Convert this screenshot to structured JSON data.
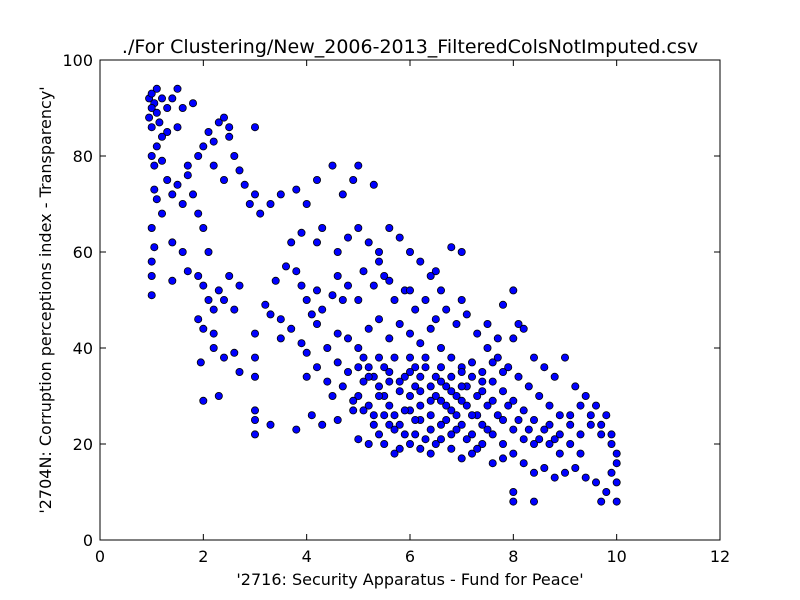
{
  "chart_data": {
    "type": "scatter",
    "title": "./For Clustering/New_2006-2013_FilteredColsNotImputed.csv",
    "xlabel": "'2716: Security Apparatus - Fund for Peace'",
    "ylabel": "'2704N: Corruption perceptions index - Transparency'",
    "xlim": [
      0,
      12
    ],
    "ylim": [
      0,
      100
    ],
    "x_ticks": [
      "0",
      "2",
      "4",
      "6",
      "8",
      "10",
      "12"
    ],
    "y_ticks": [
      "0",
      "20",
      "40",
      "60",
      "80",
      "100"
    ],
    "grid": false,
    "legend": "none",
    "marker_color": "#0000ff",
    "marker_edge_color": "#000000",
    "points": [
      [
        0.95,
        92
      ],
      [
        1.0,
        93
      ],
      [
        1.05,
        91
      ],
      [
        1.1,
        94
      ],
      [
        1.0,
        90
      ],
      [
        0.95,
        88
      ],
      [
        1.1,
        89
      ],
      [
        1.2,
        92
      ],
      [
        1.0,
        86
      ],
      [
        1.15,
        87
      ],
      [
        1.3,
        90
      ],
      [
        1.4,
        92
      ],
      [
        1.5,
        94
      ],
      [
        1.6,
        90
      ],
      [
        1.3,
        85
      ],
      [
        1.5,
        86
      ],
      [
        1.2,
        84
      ],
      [
        1.8,
        91
      ],
      [
        1.0,
        80
      ],
      [
        1.05,
        78
      ],
      [
        1.1,
        82
      ],
      [
        1.2,
        79
      ],
      [
        1.05,
        73
      ],
      [
        1.1,
        71
      ],
      [
        1.2,
        68
      ],
      [
        1.0,
        65
      ],
      [
        1.05,
        61
      ],
      [
        1.0,
        58
      ],
      [
        1.0,
        55
      ],
      [
        1.0,
        51
      ],
      [
        1.3,
        75
      ],
      [
        1.4,
        72
      ],
      [
        1.5,
        74
      ],
      [
        1.6,
        70
      ],
      [
        1.7,
        76
      ],
      [
        1.8,
        72
      ],
      [
        1.9,
        68
      ],
      [
        1.7,
        78
      ],
      [
        1.9,
        80
      ],
      [
        2.0,
        82
      ],
      [
        2.1,
        85
      ],
      [
        2.2,
        83
      ],
      [
        2.3,
        87
      ],
      [
        2.4,
        88
      ],
      [
        2.5,
        86
      ],
      [
        2.5,
        84
      ],
      [
        2.2,
        78
      ],
      [
        2.4,
        75
      ],
      [
        2.6,
        80
      ],
      [
        2.7,
        77
      ],
      [
        3.0,
        86
      ],
      [
        2.8,
        74
      ],
      [
        3.0,
        72
      ],
      [
        2.9,
        70
      ],
      [
        3.1,
        68
      ],
      [
        3.3,
        70
      ],
      [
        3.5,
        72
      ],
      [
        3.8,
        73
      ],
      [
        4.0,
        70
      ],
      [
        4.2,
        75
      ],
      [
        4.5,
        78
      ],
      [
        4.7,
        72
      ],
      [
        4.9,
        75
      ],
      [
        5.0,
        78
      ],
      [
        5.3,
        74
      ],
      [
        1.6,
        60
      ],
      [
        1.7,
        56
      ],
      [
        1.4,
        62
      ],
      [
        1.4,
        54
      ],
      [
        2.0,
        65
      ],
      [
        2.1,
        60
      ],
      [
        1.9,
        55
      ],
      [
        2.0,
        53
      ],
      [
        2.1,
        50
      ],
      [
        2.2,
        48
      ],
      [
        1.9,
        46
      ],
      [
        2.0,
        44
      ],
      [
        2.2,
        43
      ],
      [
        2.3,
        52
      ],
      [
        2.4,
        50
      ],
      [
        2.5,
        55
      ],
      [
        2.6,
        48
      ],
      [
        2.7,
        53
      ],
      [
        2.2,
        40
      ],
      [
        2.4,
        38
      ],
      [
        2.6,
        39
      ],
      [
        2.7,
        35
      ],
      [
        2.3,
        30
      ],
      [
        2.0,
        29
      ],
      [
        1.95,
        37
      ],
      [
        3.0,
        43
      ],
      [
        3.0,
        38
      ],
      [
        3.0,
        34
      ],
      [
        3.0,
        27
      ],
      [
        3.0,
        25
      ],
      [
        3.0,
        22
      ],
      [
        3.3,
        24
      ],
      [
        3.2,
        49
      ],
      [
        3.3,
        47
      ],
      [
        3.5,
        46
      ],
      [
        3.4,
        54
      ],
      [
        3.6,
        57
      ],
      [
        3.8,
        56
      ],
      [
        3.9,
        53
      ],
      [
        4.0,
        50
      ],
      [
        4.1,
        47
      ],
      [
        4.2,
        52
      ],
      [
        4.3,
        48
      ],
      [
        4.5,
        51
      ],
      [
        4.6,
        55
      ],
      [
        4.7,
        50
      ],
      [
        4.8,
        53
      ],
      [
        5.0,
        50
      ],
      [
        3.7,
        62
      ],
      [
        3.9,
        64
      ],
      [
        4.2,
        62
      ],
      [
        4.3,
        65
      ],
      [
        4.6,
        60
      ],
      [
        4.8,
        63
      ],
      [
        5.0,
        65
      ],
      [
        5.2,
        62
      ],
      [
        5.4,
        60
      ],
      [
        5.6,
        65
      ],
      [
        5.8,
        63
      ],
      [
        6.0,
        60
      ],
      [
        6.2,
        58
      ],
      [
        6.5,
        56
      ],
      [
        6.8,
        61
      ],
      [
        7.0,
        60
      ],
      [
        3.5,
        42
      ],
      [
        3.7,
        44
      ],
      [
        3.9,
        41
      ],
      [
        4.0,
        39
      ],
      [
        4.2,
        45
      ],
      [
        4.4,
        40
      ],
      [
        4.6,
        43
      ],
      [
        4.8,
        42
      ],
      [
        4.0,
        34
      ],
      [
        4.2,
        36
      ],
      [
        4.4,
        33
      ],
      [
        4.6,
        37
      ],
      [
        3.8,
        23
      ],
      [
        4.1,
        26
      ],
      [
        4.3,
        24
      ],
      [
        4.6,
        25
      ],
      [
        4.9,
        27
      ],
      [
        5.0,
        21
      ],
      [
        5.2,
        20
      ],
      [
        5.4,
        22
      ],
      [
        5.6,
        24
      ],
      [
        5.8,
        19
      ],
      [
        6.0,
        20
      ],
      [
        6.2,
        19
      ],
      [
        6.4,
        18
      ],
      [
        6.6,
        21
      ],
      [
        6.8,
        19
      ],
      [
        7.0,
        17
      ],
      [
        7.2,
        18
      ],
      [
        7.4,
        20
      ],
      [
        7.6,
        16
      ],
      [
        7.8,
        17
      ],
      [
        8.0,
        18
      ],
      [
        8.2,
        16
      ],
      [
        8.4,
        14
      ],
      [
        8.6,
        15
      ],
      [
        8.8,
        13
      ],
      [
        9.0,
        14
      ],
      [
        9.2,
        15
      ],
      [
        9.4,
        13
      ],
      [
        9.6,
        12
      ],
      [
        9.8,
        10
      ],
      [
        10.0,
        8
      ],
      [
        9.9,
        14
      ],
      [
        10.0,
        16
      ],
      [
        10.0,
        12
      ],
      [
        9.7,
        8
      ],
      [
        8.0,
        8
      ],
      [
        8.4,
        8
      ],
      [
        8.0,
        10
      ],
      [
        10.0,
        18
      ],
      [
        5.0,
        40
      ],
      [
        5.1,
        38
      ],
      [
        5.2,
        36
      ],
      [
        5.3,
        34
      ],
      [
        5.4,
        32
      ],
      [
        5.5,
        30
      ],
      [
        5.6,
        28
      ],
      [
        5.7,
        26
      ],
      [
        5.8,
        24
      ],
      [
        5.9,
        22
      ],
      [
        5.2,
        44
      ],
      [
        5.4,
        46
      ],
      [
        5.6,
        42
      ],
      [
        5.8,
        45
      ],
      [
        6.0,
        43
      ],
      [
        6.2,
        41
      ],
      [
        6.4,
        44
      ],
      [
        6.6,
        40
      ],
      [
        6.8,
        38
      ],
      [
        7.0,
        36
      ],
      [
        5.5,
        36
      ],
      [
        5.7,
        38
      ],
      [
        5.9,
        34
      ],
      [
        6.1,
        32
      ],
      [
        6.3,
        36
      ],
      [
        6.5,
        34
      ],
      [
        6.7,
        32
      ],
      [
        6.9,
        30
      ],
      [
        7.1,
        28
      ],
      [
        7.3,
        26
      ],
      [
        6.0,
        30
      ],
      [
        6.2,
        28
      ],
      [
        6.4,
        26
      ],
      [
        6.6,
        24
      ],
      [
        6.8,
        22
      ],
      [
        7.0,
        24
      ],
      [
        7.2,
        22
      ],
      [
        7.4,
        24
      ],
      [
        7.6,
        22
      ],
      [
        7.8,
        20
      ],
      [
        6.1,
        36
      ],
      [
        6.3,
        38
      ],
      [
        6.5,
        30
      ],
      [
        6.7,
        28
      ],
      [
        6.9,
        26
      ],
      [
        7.1,
        32
      ],
      [
        7.3,
        30
      ],
      [
        7.5,
        28
      ],
      [
        7.7,
        26
      ],
      [
        7.9,
        28
      ],
      [
        7.0,
        35
      ],
      [
        7.2,
        37
      ],
      [
        7.4,
        35
      ],
      [
        7.6,
        33
      ],
      [
        7.8,
        31
      ],
      [
        8.0,
        29
      ],
      [
        8.2,
        27
      ],
      [
        8.4,
        25
      ],
      [
        8.6,
        23
      ],
      [
        8.8,
        21
      ],
      [
        7.5,
        40
      ],
      [
        7.7,
        38
      ],
      [
        7.9,
        36
      ],
      [
        8.1,
        34
      ],
      [
        8.3,
        32
      ],
      [
        8.5,
        30
      ],
      [
        8.7,
        28
      ],
      [
        8.9,
        26
      ],
      [
        9.1,
        24
      ],
      [
        9.3,
        22
      ],
      [
        8.0,
        42
      ],
      [
        8.1,
        45
      ],
      [
        7.8,
        49
      ],
      [
        8.0,
        52
      ],
      [
        8.2,
        44
      ],
      [
        8.4,
        38
      ],
      [
        8.6,
        36
      ],
      [
        8.8,
        34
      ],
      [
        9.0,
        38
      ],
      [
        9.2,
        32
      ],
      [
        9.4,
        30
      ],
      [
        9.6,
        28
      ],
      [
        9.8,
        26
      ],
      [
        9.5,
        24
      ],
      [
        9.7,
        22
      ],
      [
        9.9,
        20
      ],
      [
        9.3,
        18
      ],
      [
        9.1,
        20
      ],
      [
        8.9,
        18
      ],
      [
        8.7,
        20
      ],
      [
        5.3,
        53
      ],
      [
        5.5,
        55
      ],
      [
        5.7,
        50
      ],
      [
        5.9,
        52
      ],
      [
        6.1,
        48
      ],
      [
        6.3,
        50
      ],
      [
        6.5,
        46
      ],
      [
        6.7,
        48
      ],
      [
        6.9,
        45
      ],
      [
        7.1,
        47
      ],
      [
        7.3,
        43
      ],
      [
        7.5,
        45
      ],
      [
        7.7,
        42
      ],
      [
        5.1,
        56
      ],
      [
        5.4,
        58
      ],
      [
        5.6,
        54
      ],
      [
        6.0,
        52
      ],
      [
        6.4,
        55
      ],
      [
        6.6,
        52
      ],
      [
        7.0,
        50
      ],
      [
        5.0,
        30
      ],
      [
        5.1,
        33
      ],
      [
        5.2,
        28
      ],
      [
        5.3,
        26
      ],
      [
        5.4,
        30
      ],
      [
        5.6,
        33
      ],
      [
        5.8,
        31
      ],
      [
        6.0,
        27
      ],
      [
        6.2,
        25
      ],
      [
        6.4,
        23
      ],
      [
        6.6,
        29
      ],
      [
        6.8,
        27
      ],
      [
        7.0,
        29
      ],
      [
        7.2,
        26
      ],
      [
        7.4,
        31
      ],
      [
        7.6,
        29
      ],
      [
        7.8,
        25
      ],
      [
        8.0,
        23
      ],
      [
        8.2,
        21
      ],
      [
        8.4,
        20
      ],
      [
        6.0,
        38
      ],
      [
        6.2,
        34
      ],
      [
        6.4,
        32
      ],
      [
        6.6,
        36
      ],
      [
        6.8,
        34
      ],
      [
        7.0,
        32
      ],
      [
        7.2,
        34
      ],
      [
        7.4,
        33
      ],
      [
        7.6,
        37
      ],
      [
        7.8,
        35
      ],
      [
        5.5,
        20
      ],
      [
        5.7,
        18
      ],
      [
        6.1,
        22
      ],
      [
        6.3,
        21
      ],
      [
        6.5,
        20
      ],
      [
        6.7,
        25
      ],
      [
        6.9,
        23
      ],
      [
        7.1,
        21
      ],
      [
        7.3,
        19
      ],
      [
        7.5,
        23
      ],
      [
        8.1,
        25
      ],
      [
        8.3,
        23
      ],
      [
        8.5,
        21
      ],
      [
        8.7,
        24
      ],
      [
        8.9,
        22
      ],
      [
        9.1,
        26
      ],
      [
        9.3,
        28
      ],
      [
        9.5,
        26
      ],
      [
        9.7,
        24
      ],
      [
        9.9,
        22
      ],
      [
        5.0,
        36
      ],
      [
        5.2,
        34
      ],
      [
        5.4,
        38
      ],
      [
        5.6,
        35
      ],
      [
        5.8,
        33
      ],
      [
        6.0,
        35
      ],
      [
        6.2,
        31
      ],
      [
        6.4,
        29
      ],
      [
        6.6,
        33
      ],
      [
        6.8,
        31
      ],
      [
        4.5,
        30
      ],
      [
        4.7,
        32
      ],
      [
        4.9,
        29
      ],
      [
        4.8,
        35
      ],
      [
        5.1,
        27
      ],
      [
        5.3,
        24
      ],
      [
        5.5,
        26
      ],
      [
        5.7,
        23
      ],
      [
        5.9,
        27
      ],
      [
        6.1,
        25
      ]
    ]
  }
}
